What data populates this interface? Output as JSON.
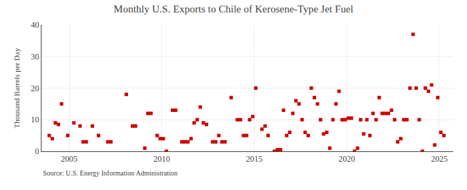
{
  "chart_data": {
    "type": "scatter",
    "title": "Monthly U.S. Exports to Chile of Kerosene-Type Jet Fuel",
    "ylabel": "Thousand Barrels per Day",
    "annotations": [
      "Source: U.S. Energy Information Administration"
    ],
    "color": "#cc0000",
    "marker": "square",
    "grid": true,
    "xlim": [
      2003.5,
      2025.75
    ],
    "xticks": [
      2005,
      2010,
      2015,
      2020,
      2025
    ],
    "ylim": [
      0,
      40
    ],
    "yticks": [
      0,
      10,
      20,
      30,
      40
    ],
    "x": [
      2003.917,
      2004.083,
      2004.25,
      2004.417,
      2004.583,
      2004.917,
      2005.25,
      2005.583,
      2005.75,
      2005.917,
      2006.25,
      2006.583,
      2007.083,
      2007.25,
      2008.083,
      2008.417,
      2008.583,
      2009.083,
      2009.25,
      2009.417,
      2009.75,
      2009.917,
      2010.083,
      2010.25,
      2010.583,
      2010.75,
      2011.083,
      2011.25,
      2011.417,
      2011.583,
      2011.75,
      2011.917,
      2012.083,
      2012.25,
      2012.417,
      2012.75,
      2012.917,
      2013.083,
      2013.25,
      2013.417,
      2013.75,
      2014.083,
      2014.25,
      2014.417,
      2014.583,
      2014.75,
      2014.917,
      2015.083,
      2015.417,
      2015.583,
      2015.75,
      2016.083,
      2016.25,
      2016.417,
      2016.583,
      2016.75,
      2016.917,
      2017.083,
      2017.25,
      2017.417,
      2017.583,
      2017.75,
      2017.917,
      2018.083,
      2018.25,
      2018.417,
      2018.583,
      2018.75,
      2018.917,
      2019.083,
      2019.25,
      2019.417,
      2019.583,
      2019.75,
      2019.917,
      2020.083,
      2020.25,
      2020.417,
      2020.583,
      2020.75,
      2020.917,
      2021.083,
      2021.25,
      2021.417,
      2021.583,
      2021.75,
      2021.917,
      2022.083,
      2022.25,
      2022.417,
      2022.583,
      2022.75,
      2022.917,
      2023.083,
      2023.25,
      2023.417,
      2023.583,
      2023.75,
      2023.917,
      2024.083,
      2024.25,
      2024.417,
      2024.583,
      2024.75,
      2024.917,
      2025.083,
      2025.25
    ],
    "values": [
      5.0,
      4.0,
      9.0,
      8.5,
      15.0,
      5.0,
      9.0,
      8.0,
      3.0,
      3.0,
      8.0,
      5.0,
      3.0,
      3.0,
      18.0,
      8.0,
      8.0,
      1.0,
      12.0,
      12.0,
      5.0,
      4.0,
      4.0,
      0.0,
      13.0,
      13.0,
      3.0,
      3.0,
      3.0,
      4.0,
      9.0,
      10.0,
      14.0,
      9.0,
      8.5,
      3.0,
      3.0,
      5.0,
      3.0,
      3.0,
      17.0,
      10.0,
      10.0,
      5.0,
      5.0,
      10.0,
      11.0,
      20.0,
      7.0,
      8.0,
      5.0,
      0.0,
      0.5,
      0.5,
      13.0,
      5.0,
      6.0,
      12.0,
      16.0,
      15.0,
      10.0,
      6.0,
      5.0,
      20.0,
      17.0,
      15.0,
      10.0,
      5.5,
      6.0,
      1.0,
      10.0,
      15.0,
      19.0,
      10.0,
      10.0,
      10.5,
      10.5,
      0.0,
      1.0,
      10.0,
      5.5,
      10.0,
      5.0,
      12.0,
      10.0,
      17.0,
      12.0,
      12.0,
      12.0,
      13.0,
      10.0,
      3.0,
      4.0,
      10.0,
      10.0,
      20.0,
      37.0,
      20.0,
      10.0,
      0.0,
      20.0,
      19.0,
      21.0,
      2.0,
      17.0,
      6.0,
      5.0
    ]
  }
}
